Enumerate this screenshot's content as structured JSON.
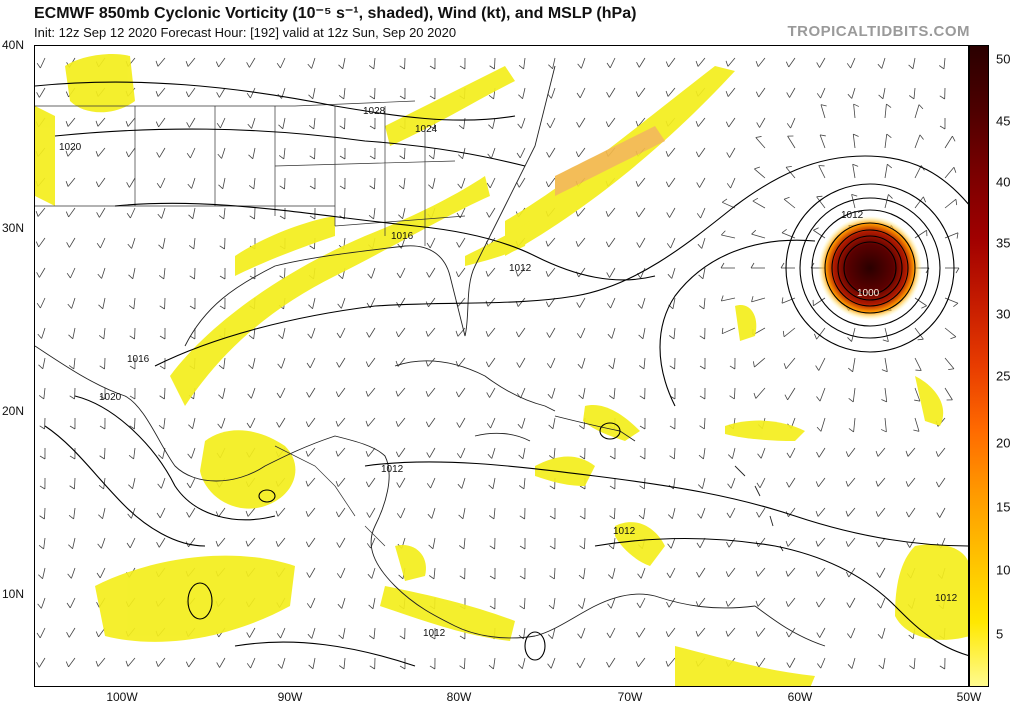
{
  "header": {
    "title": "ECMWF 850mb Cyclonic Vorticity (10⁻⁵ s⁻¹, shaded), Wind (kt), and MSLP (hPa)",
    "subtitle": "Init: 12z Sep 12 2020   Forecast Hour: [192]   valid at 12z Sun, Sep 20 2020",
    "brand": "TROPICALTIDBITS.COM"
  },
  "axes": {
    "lat_labels": [
      "40N",
      "30N",
      "20N",
      "10N"
    ],
    "lon_labels": [
      "100W",
      "90W",
      "80W",
      "70W",
      "60W",
      "50W"
    ]
  },
  "colorbar": {
    "labels": [
      "50",
      "45",
      "40",
      "35",
      "30",
      "25",
      "20",
      "15",
      "10",
      "5"
    ],
    "colors": [
      "#fffb8f",
      "#ffe800",
      "#ffc100",
      "#ff9a00",
      "#ff6a00",
      "#e83c00",
      "#c51b00",
      "#a00000",
      "#7a0000",
      "#4d0000",
      "#2a0000"
    ]
  },
  "isobar_labels": [
    "1028",
    "1024",
    "1020",
    "1016",
    "1012",
    "1012",
    "1016",
    "1020",
    "1012",
    "1012",
    "1012",
    "1012",
    "1012",
    "1000"
  ],
  "colors": {
    "shading_low": "#f4ee1c",
    "shading_high": "#f2a33c",
    "cyclone_core": "#3a0000",
    "isobar": "#000000"
  }
}
